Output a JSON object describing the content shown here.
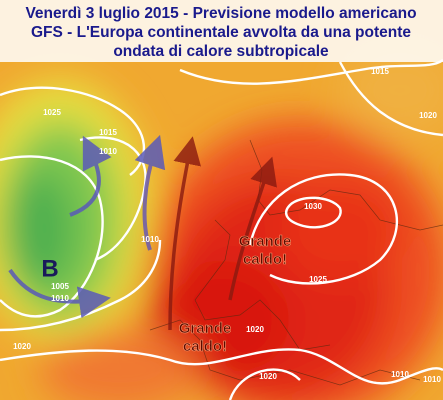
{
  "title": {
    "lines": [
      "Venerdì 3 luglio 2015 - Previsione modello americano",
      "GFS - L'Europa continentale avvolta da una potente",
      "ondata di calore subtropicale"
    ]
  },
  "low_center": "B",
  "pressure_labels": [
    "1025",
    "1015",
    "1010",
    "1015",
    "1020",
    "1030",
    "1010",
    "1005",
    "1010",
    "1025",
    "1020",
    "1020",
    "1020",
    "1010",
    "1010"
  ],
  "annotations": [
    [
      "Grande",
      "caldo!"
    ],
    [
      "Grande",
      "caldo!"
    ]
  ]
}
